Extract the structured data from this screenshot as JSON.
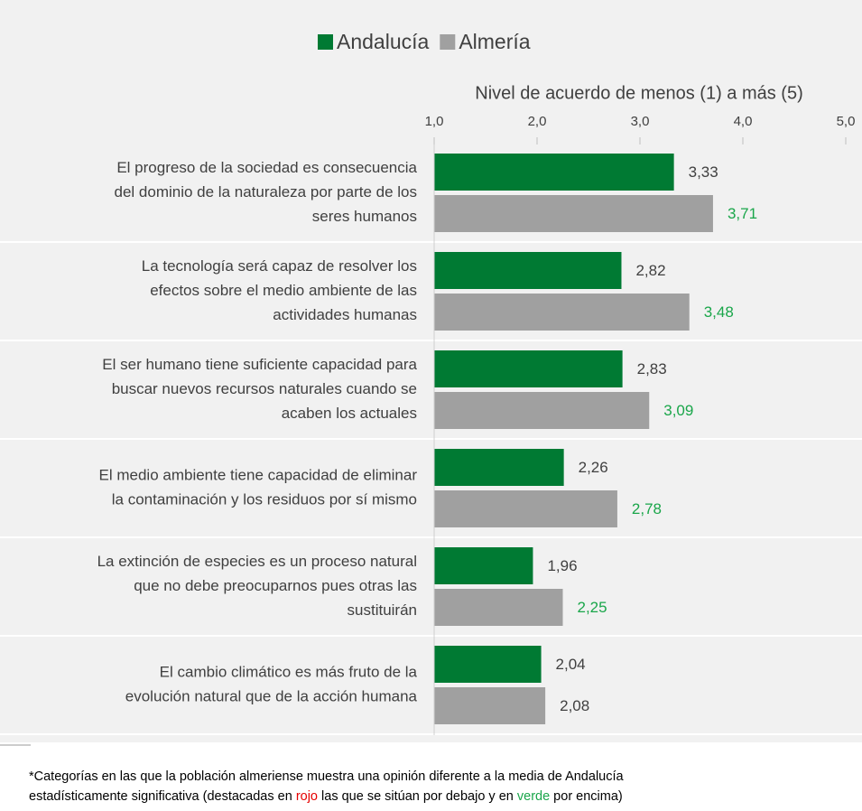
{
  "chart_data": {
    "type": "hbar",
    "x_title": "Nivel de acuerdo de menos (1) a más (5)",
    "categories": [
      [
        "El progreso de la sociedad es consecuencia",
        "del dominio de la naturaleza por parte de los",
        "seres humanos"
      ],
      [
        "La tecnología será capaz de resolver los",
        "efectos sobre el medio ambiente de las",
        "actividades humanas"
      ],
      [
        "El ser humano tiene suficiente capacidad para",
        "buscar nuevos recursos naturales cuando se",
        "acaben los actuales"
      ],
      [
        "El medio ambiente tiene capacidad de eliminar",
        "la contaminación y los residuos por sí mismo"
      ],
      [
        "La extinción de especies es un proceso natural",
        "que no debe preocuparnos pues otras las",
        "sustituirán"
      ],
      [
        "El cambio climático es más fruto de la",
        "evolución natural que de la acción humana"
      ]
    ],
    "series": [
      {
        "name": "Andalucía",
        "color": "#007a33",
        "values": [
          3.33,
          2.82,
          2.83,
          2.26,
          1.96,
          2.04
        ],
        "value_labels": [
          "3,33",
          "2,82",
          "2,83",
          "2,26",
          "1,96",
          "2,04"
        ],
        "label_colors": [
          "#404040",
          "#404040",
          "#404040",
          "#404040",
          "#404040",
          "#404040"
        ]
      },
      {
        "name": "Almería",
        "color": "#a0a0a0",
        "values": [
          3.71,
          3.48,
          3.09,
          2.78,
          2.25,
          2.08
        ],
        "value_labels": [
          "3,71",
          "3,48",
          "3,09",
          "2,78",
          "2,25",
          "2,08"
        ],
        "label_colors": [
          "#1aa64a",
          "#1aa64a",
          "#1aa64a",
          "#1aa64a",
          "#1aa64a",
          "#404040"
        ]
      }
    ],
    "xlim": [
      1,
      5
    ],
    "xticks": [
      {
        "value": 1,
        "label": "1,0"
      },
      {
        "value": 2,
        "label": "2,0"
      },
      {
        "value": 3,
        "label": "3,0"
      },
      {
        "value": 4,
        "label": "4,0"
      },
      {
        "value": 5,
        "label": "5,0"
      }
    ],
    "legend": "top",
    "footnote": [
      [
        {
          "text": "*Categorías en las que la población almeriense muestra una opinión diferente a la media de Andalucía"
        }
      ],
      [
        {
          "text": "estadísticamente significativa (destacadas en "
        },
        {
          "text": "rojo",
          "color": "#e60000"
        },
        {
          "text": " las que se sitúan por debajo y en "
        },
        {
          "text": "verde",
          "color": "#1aa64a"
        },
        {
          "text": " por encima)"
        }
      ]
    ]
  }
}
